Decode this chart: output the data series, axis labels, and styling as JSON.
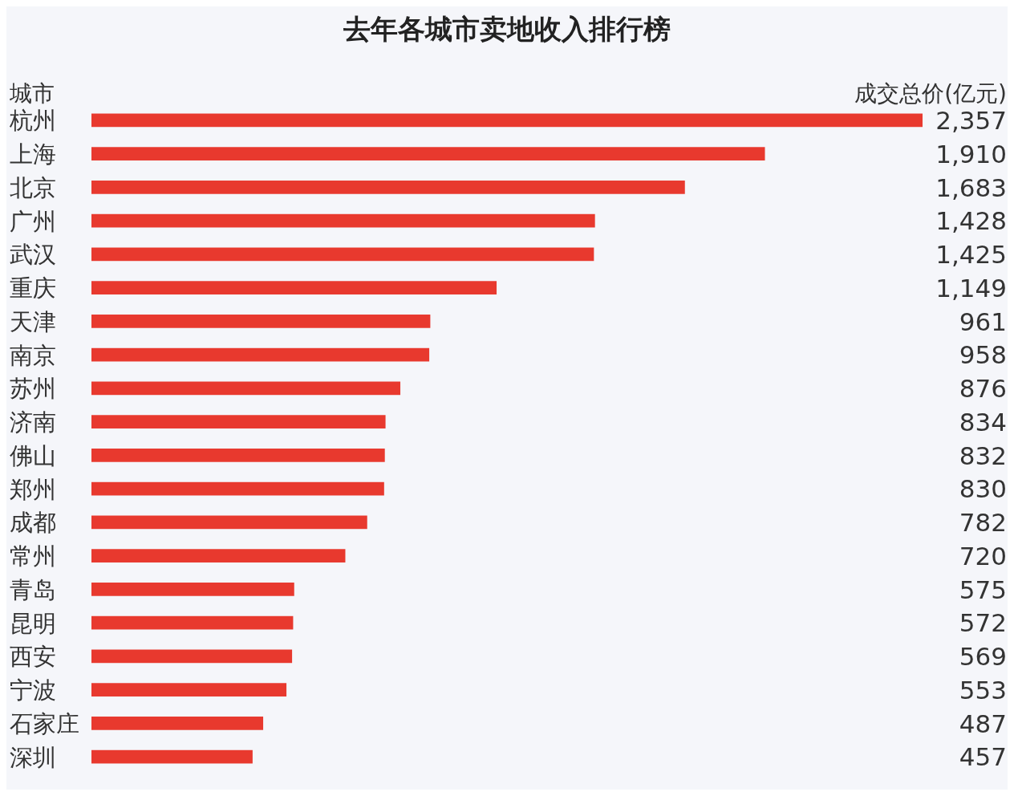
{
  "chart_data": {
    "type": "bar",
    "orientation": "horizontal",
    "title": "去年各城市卖地收入排行榜",
    "ylabel": "城市",
    "xlabel": "成交总价(亿元)",
    "categories": [
      "杭州",
      "上海",
      "北京",
      "广州",
      "武汉",
      "重庆",
      "天津",
      "南京",
      "苏州",
      "济南",
      "佛山",
      "郑州",
      "成都",
      "常州",
      "青岛",
      "昆明",
      "西安",
      "宁波",
      "石家庄",
      "深圳"
    ],
    "values": [
      2357,
      1910,
      1683,
      1428,
      1425,
      1149,
      961,
      958,
      876,
      834,
      832,
      830,
      782,
      720,
      575,
      572,
      569,
      553,
      487,
      457
    ],
    "value_labels": [
      "2,357",
      "1,910",
      "1,683",
      "1,428",
      "1,425",
      "1,149",
      "961",
      "958",
      "876",
      "834",
      "832",
      "830",
      "782",
      "720",
      "575",
      "572",
      "569",
      "553",
      "487",
      "457"
    ],
    "color": "#e8392e"
  }
}
